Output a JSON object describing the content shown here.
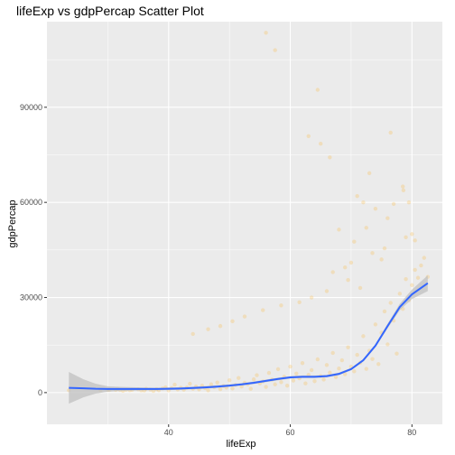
{
  "chart_data": {
    "type": "scatter",
    "title": "lifeExp vs gdpPercap Scatter Plot",
    "xlabel": "lifeExp",
    "ylabel": "gdpPercap",
    "xlim": [
      20,
      85
    ],
    "ylim": [
      -10000,
      117000
    ],
    "x_ticks": [
      40,
      60,
      80
    ],
    "x_tick_labels": [
      "40",
      "60",
      "80"
    ],
    "y_ticks": [
      0,
      30000,
      60000,
      90000
    ],
    "y_tick_labels": [
      "0",
      "30000",
      "60000",
      "90000"
    ],
    "grid": true,
    "legend": "none",
    "colors": {
      "panel": "#ebebeb",
      "grid_major": "#ffffff",
      "points": "#ffa500",
      "smooth_line": "#3366ff",
      "confidence_band": "#c0c0c0"
    },
    "points": [
      [
        23.6,
        737
      ],
      [
        28.8,
        779
      ],
      [
        30.0,
        820
      ],
      [
        30.3,
        853
      ],
      [
        31.3,
        853
      ],
      [
        31.6,
        1160
      ],
      [
        32.0,
        836
      ],
      [
        32.5,
        560
      ],
      [
        33.0,
        890
      ],
      [
        33.6,
        779
      ],
      [
        34.0,
        860
      ],
      [
        35.0,
        1034
      ],
      [
        35.5,
        700
      ],
      [
        36.0,
        660
      ],
      [
        36.3,
        1200
      ],
      [
        37.0,
        950
      ],
      [
        37.5,
        520
      ],
      [
        38.0,
        1100
      ],
      [
        38.4,
        750
      ],
      [
        39.0,
        1300
      ],
      [
        39.5,
        1650
      ],
      [
        40.0,
        700
      ],
      [
        40.5,
        1400
      ],
      [
        41.0,
        2500
      ],
      [
        41.5,
        980
      ],
      [
        42.0,
        1500
      ],
      [
        42.5,
        900
      ],
      [
        43.0,
        1600
      ],
      [
        43.5,
        2800
      ],
      [
        44.0,
        1200
      ],
      [
        44.5,
        1900
      ],
      [
        45.0,
        1000
      ],
      [
        45.5,
        2200
      ],
      [
        46.0,
        1400
      ],
      [
        46.5,
        700
      ],
      [
        47.0,
        2600
      ],
      [
        47.5,
        1700
      ],
      [
        48.0,
        3200
      ],
      [
        48.5,
        1100
      ],
      [
        49.0,
        2100
      ],
      [
        49.5,
        1600
      ],
      [
        50.0,
        3900
      ],
      [
        50.5,
        1300
      ],
      [
        51.0,
        2400
      ],
      [
        51.5,
        4600
      ],
      [
        52.0,
        1900
      ],
      [
        52.5,
        3100
      ],
      [
        53.0,
        2600
      ],
      [
        53.5,
        1200
      ],
      [
        54.0,
        4200
      ],
      [
        54.5,
        5500
      ],
      [
        55.0,
        2900
      ],
      [
        55.5,
        3500
      ],
      [
        56.0,
        1800
      ],
      [
        56.5,
        6200
      ],
      [
        57.0,
        4100
      ],
      [
        57.5,
        2600
      ],
      [
        58.0,
        7400
      ],
      [
        58.5,
        3300
      ],
      [
        59.0,
        5000
      ],
      [
        59.5,
        2200
      ],
      [
        60.0,
        8200
      ],
      [
        60.5,
        3800
      ],
      [
        61.0,
        6000
      ],
      [
        61.5,
        4500
      ],
      [
        62.0,
        9300
      ],
      [
        62.5,
        2900
      ],
      [
        63.0,
        5600
      ],
      [
        63.5,
        7100
      ],
      [
        64.0,
        3600
      ],
      [
        64.5,
        10500
      ],
      [
        65.0,
        5200
      ],
      [
        65.5,
        4100
      ],
      [
        66.0,
        8700
      ],
      [
        66.5,
        6300
      ],
      [
        67.0,
        12500
      ],
      [
        67.5,
        4900
      ],
      [
        68.0,
        7600
      ],
      [
        68.5,
        10200
      ],
      [
        69.0,
        5800
      ],
      [
        69.5,
        14300
      ],
      [
        70.0,
        8200
      ],
      [
        70.5,
        6700
      ],
      [
        71.0,
        11900
      ],
      [
        71.5,
        9400
      ],
      [
        72.0,
        17800
      ],
      [
        72.5,
        7500
      ],
      [
        73.0,
        13200
      ],
      [
        73.5,
        10600
      ],
      [
        74.0,
        21500
      ],
      [
        74.5,
        9000
      ],
      [
        75.0,
        18900
      ],
      [
        75.5,
        25600
      ],
      [
        76.0,
        15200
      ],
      [
        76.5,
        28300
      ],
      [
        77.0,
        22700
      ],
      [
        77.5,
        12300
      ],
      [
        78.0,
        31200
      ],
      [
        78.5,
        26400
      ],
      [
        79.0,
        35800
      ],
      [
        79.5,
        29100
      ],
      [
        80.0,
        33900
      ],
      [
        80.5,
        38700
      ],
      [
        81.0,
        36200
      ],
      [
        81.5,
        40100
      ],
      [
        82.0,
        42500
      ],
      [
        82.6,
        36500
      ],
      [
        57.5,
        108000
      ],
      [
        56.0,
        113500
      ],
      [
        64.5,
        95500
      ],
      [
        63.0,
        80900
      ],
      [
        65.0,
        78500
      ],
      [
        66.5,
        74200
      ],
      [
        73.0,
        69200
      ],
      [
        77.0,
        59500
      ],
      [
        76.5,
        82000
      ],
      [
        78.5,
        65000
      ],
      [
        78.6,
        63800
      ],
      [
        79.5,
        60000
      ],
      [
        80.0,
        50000
      ],
      [
        80.5,
        48000
      ],
      [
        72.0,
        60000
      ],
      [
        74.0,
        58000
      ],
      [
        71.0,
        62000
      ],
      [
        75.5,
        45500
      ],
      [
        70.5,
        47600
      ],
      [
        68.0,
        51400
      ],
      [
        76.0,
        55000
      ],
      [
        79.0,
        49000
      ],
      [
        72.5,
        52000
      ],
      [
        73.5,
        44000
      ],
      [
        75.0,
        42000
      ],
      [
        70.0,
        41000
      ],
      [
        69.0,
        39500
      ],
      [
        67.0,
        38000
      ],
      [
        69.5,
        35500
      ],
      [
        71.5,
        33000
      ],
      [
        66.0,
        32000
      ],
      [
        63.5,
        30000
      ],
      [
        61.5,
        28500
      ],
      [
        58.5,
        27500
      ],
      [
        55.5,
        26000
      ],
      [
        52.5,
        24000
      ],
      [
        50.5,
        22500
      ],
      [
        48.5,
        21000
      ],
      [
        46.5,
        20000
      ],
      [
        44.0,
        18500
      ]
    ],
    "smooth_line": [
      [
        23.6,
        1500
      ],
      [
        26,
        1350
      ],
      [
        28,
        1200
      ],
      [
        30,
        1150
      ],
      [
        32,
        1150
      ],
      [
        34,
        1150
      ],
      [
        36,
        1150
      ],
      [
        38,
        1150
      ],
      [
        40,
        1200
      ],
      [
        42,
        1300
      ],
      [
        44,
        1450
      ],
      [
        46,
        1650
      ],
      [
        48,
        1900
      ],
      [
        50,
        2200
      ],
      [
        52,
        2600
      ],
      [
        54,
        3100
      ],
      [
        56,
        3700
      ],
      [
        58,
        4300
      ],
      [
        60,
        4800
      ],
      [
        62,
        5000
      ],
      [
        64,
        5000
      ],
      [
        66,
        5200
      ],
      [
        68,
        5900
      ],
      [
        70,
        7400
      ],
      [
        72,
        10200
      ],
      [
        74,
        14800
      ],
      [
        76,
        21000
      ],
      [
        78,
        27000
      ],
      [
        80,
        31000
      ],
      [
        82.6,
        34500
      ]
    ],
    "confidence_band": [
      [
        23.6,
        -3500,
        6500
      ],
      [
        26,
        -1500,
        4200
      ],
      [
        28,
        -300,
        2800
      ],
      [
        30,
        300,
        2000
      ],
      [
        32,
        500,
        1800
      ],
      [
        34,
        600,
        1700
      ],
      [
        36,
        700,
        1600
      ],
      [
        38,
        750,
        1550
      ],
      [
        40,
        800,
        1600
      ],
      [
        42,
        900,
        1700
      ],
      [
        44,
        1050,
        1850
      ],
      [
        46,
        1250,
        2050
      ],
      [
        48,
        1500,
        2300
      ],
      [
        50,
        1800,
        2600
      ],
      [
        52,
        2200,
        3000
      ],
      [
        54,
        2700,
        3500
      ],
      [
        56,
        3300,
        4100
      ],
      [
        58,
        3900,
        4700
      ],
      [
        60,
        4400,
        5200
      ],
      [
        62,
        4600,
        5400
      ],
      [
        64,
        4600,
        5400
      ],
      [
        66,
        4800,
        5600
      ],
      [
        68,
        5500,
        6300
      ],
      [
        70,
        7000,
        7800
      ],
      [
        72,
        9800,
        10600
      ],
      [
        74,
        14300,
        15300
      ],
      [
        76,
        20300,
        21700
      ],
      [
        78,
        26000,
        28000
      ],
      [
        80,
        29500,
        32500
      ],
      [
        82.6,
        32000,
        37000
      ]
    ]
  }
}
